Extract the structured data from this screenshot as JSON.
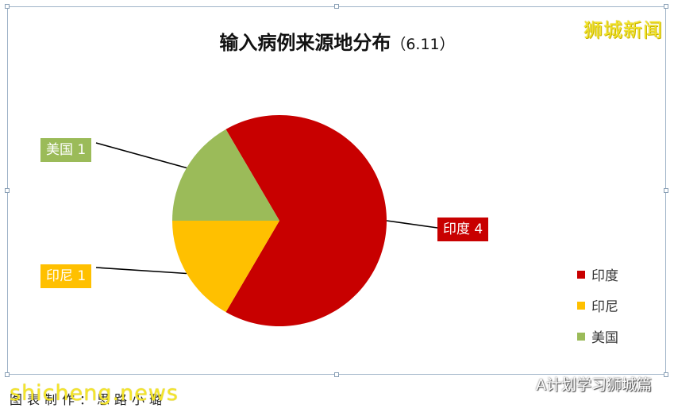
{
  "watermarks": {
    "top_right": "狮城新闻",
    "bottom_left": "shicheng.news",
    "wechat": "A计划学习狮城篇"
  },
  "caption": "图表制作：思路小璐",
  "chart_data": {
    "type": "pie",
    "title": "输入病例来源地分布",
    "subtitle": "（6.11）",
    "slices": [
      {
        "name": "印度",
        "value": 4,
        "color": "#c80000",
        "label": "印度 4"
      },
      {
        "name": "印尼",
        "value": 1,
        "color": "#ffc000",
        "label": "印尼 1"
      },
      {
        "name": "美国",
        "value": 1,
        "color": "#9bbb59",
        "label": "美国 1"
      }
    ],
    "legend": {
      "position": "right",
      "entries": [
        "印度",
        "印尼",
        "美国"
      ]
    }
  }
}
